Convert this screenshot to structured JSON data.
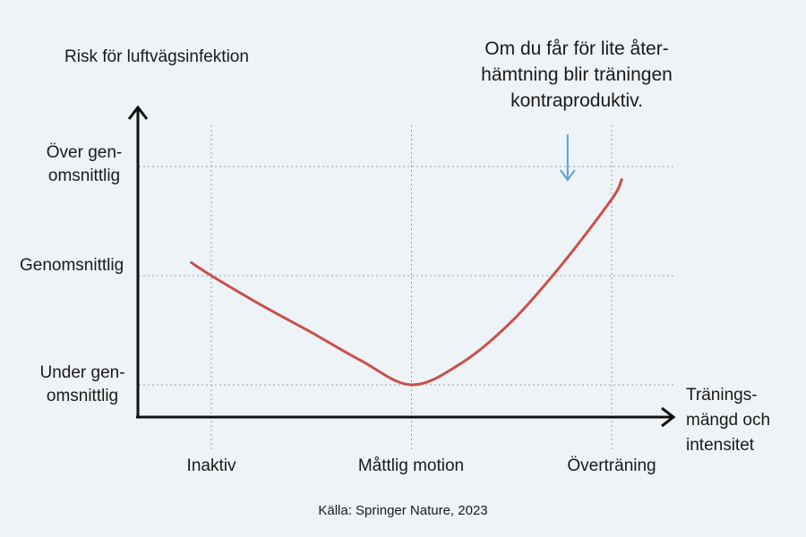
{
  "chart_data": {
    "type": "line",
    "ylabel": "Risk för luftvägsinfektion",
    "xlabel": "Tränings- mängd och intensitet",
    "y_ticks": [
      "Under gen- omsnittlig",
      "Genomsnittlig",
      "Över gen- omsnittlig"
    ],
    "x_categories": [
      "Inaktiv",
      "Måttlig motion",
      "Överträning"
    ],
    "series": [
      {
        "color": "#c9504c",
        "x": [
          -0.1,
          0,
          0.25,
          0.5,
          0.75,
          1,
          1.25,
          1.5,
          1.75,
          2,
          2.05
        ],
        "y": [
          1.12,
          1.0,
          0.73,
          0.48,
          0.22,
          0.0,
          0.2,
          0.58,
          1.1,
          1.7,
          1.88
        ]
      }
    ],
    "grid": true,
    "annotation": {
      "text": "Om du får för lite åter- hämtning blir träningen kontraproduktiv.",
      "arrow_color": "#5aa2d8",
      "points_to_x": 1.78
    },
    "source": "Källa: Springer Nature, 2023"
  }
}
